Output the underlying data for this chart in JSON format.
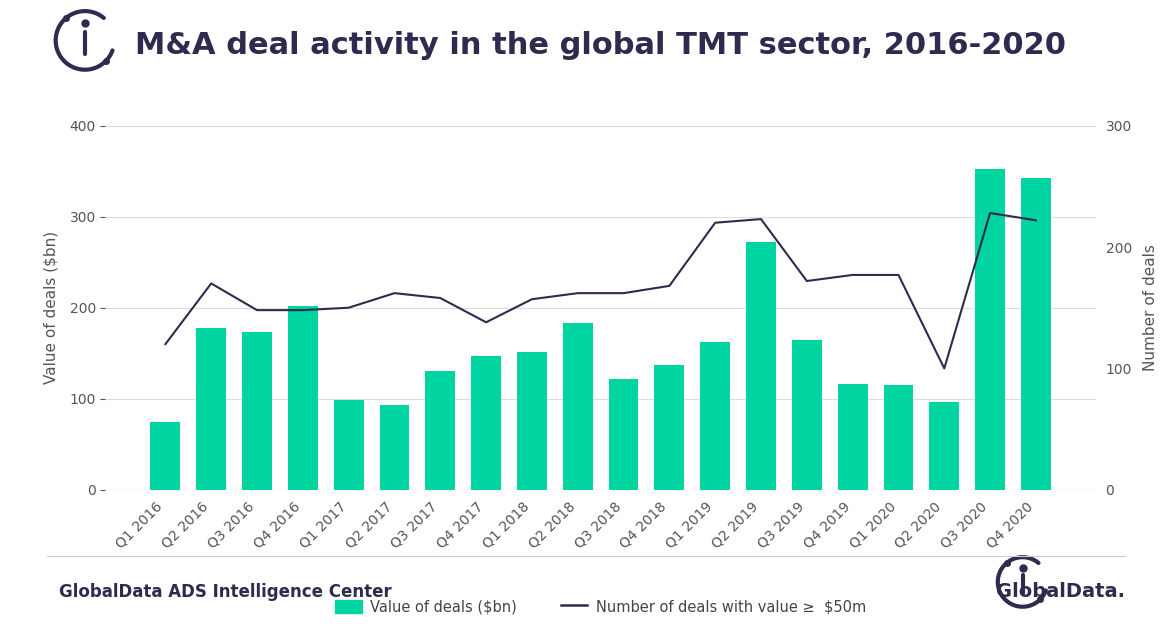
{
  "title": "M&A deal activity in the global TMT sector, 2016-2020",
  "categories": [
    "Q1 2016",
    "Q2 2016",
    "Q3 2016",
    "Q4 2016",
    "Q1 2017",
    "Q2 2017",
    "Q3 2017",
    "Q4 2017",
    "Q1 2018",
    "Q2 2018",
    "Q3 2018",
    "Q4 2018",
    "Q1 2019",
    "Q2 2019",
    "Q3 2019",
    "Q4 2019",
    "Q1 2020",
    "Q2 2020",
    "Q3 2020",
    "Q4 2020"
  ],
  "bar_values": [
    75,
    178,
    173,
    202,
    99,
    93,
    130,
    147,
    151,
    183,
    122,
    137,
    162,
    272,
    165,
    116,
    115,
    96,
    352,
    343
  ],
  "line_values": [
    120,
    170,
    148,
    148,
    150,
    162,
    158,
    138,
    157,
    162,
    162,
    168,
    220,
    223,
    172,
    177,
    177,
    100,
    228,
    222
  ],
  "bar_color": "#00d4a0",
  "line_color": "#2d2b4e",
  "left_ylabel": "Value of deals ($bn)",
  "right_ylabel": "Number of deals",
  "legend_bar": "Value of deals ($bn)",
  "legend_line": "Number of deals with value ≥  $50m",
  "left_ylim": [
    0,
    400
  ],
  "right_ylim": [
    0,
    300
  ],
  "left_yticks": [
    0,
    100,
    200,
    300,
    400
  ],
  "right_yticks": [
    0,
    100,
    200,
    300
  ],
  "footer_left": "GlobalData ADS Intelligence Center",
  "background_color": "#ffffff",
  "grid_color": "#dddddd",
  "icon_color": "#2d2b4e",
  "title_fontsize": 22,
  "axis_label_fontsize": 11,
  "tick_fontsize": 10,
  "footer_fontsize": 12
}
